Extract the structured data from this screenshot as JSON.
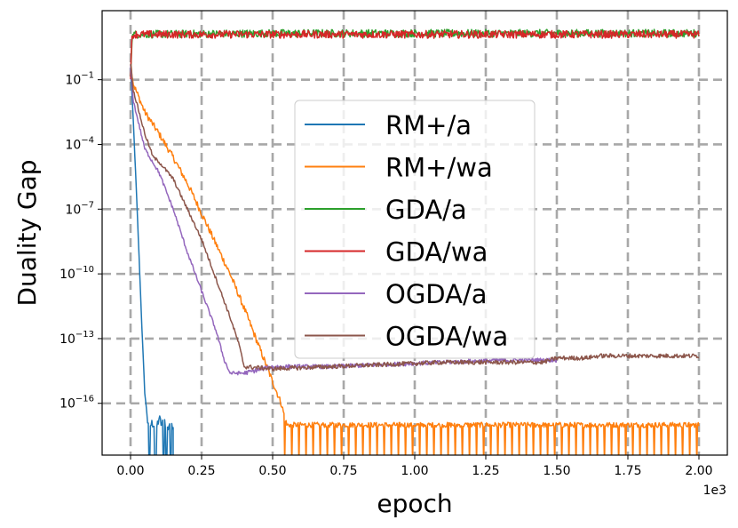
{
  "chart_data": {
    "type": "line",
    "title": "",
    "xlabel": "epoch",
    "ylabel": "Duality Gap",
    "x_scale_label": "1e3",
    "yscale": "log",
    "xlim": [
      -0.1,
      2.1
    ],
    "ylim_log10": [
      -18.4,
      2.2
    ],
    "x_ticks": [
      0.0,
      0.25,
      0.5,
      0.75,
      1.0,
      1.25,
      1.5,
      1.75,
      2.0
    ],
    "x_tick_labels": [
      "0.00",
      "0.25",
      "0.50",
      "0.75",
      "1.00",
      "1.25",
      "1.50",
      "1.75",
      "2.00"
    ],
    "y_ticks_log10": [
      -16,
      -13,
      -10,
      -7,
      -4,
      -1
    ],
    "y_tick_base": "10",
    "y_tick_exponents": [
      "−16",
      "−13",
      "−10",
      "−7",
      "−4",
      "−1"
    ],
    "grid": true,
    "legend_position": "center",
    "series": [
      {
        "name": "RM+/a",
        "color": "#1f77b4",
        "style": "spiky-bottom",
        "floor_log10": -18.4,
        "x": [
          0.0,
          0.005,
          0.01,
          0.02,
          0.03,
          0.04,
          0.05,
          0.06,
          0.07,
          0.08,
          0.09,
          0.1,
          0.11,
          0.12,
          0.13,
          0.14,
          0.15
        ],
        "y_log10": [
          -0.5,
          -1.7,
          -3.0,
          -6.0,
          -9.2,
          -12.5,
          -15.5,
          -16.8,
          -17.0,
          -16.9,
          -17.2,
          -16.7,
          -17.0,
          -16.8,
          -17.2,
          -16.8,
          -17.0
        ],
        "gaps": [
          [
            0.065,
            0.07
          ],
          [
            0.085,
            0.092
          ],
          [
            0.115,
            0.118
          ],
          [
            0.125,
            0.128
          ],
          [
            0.14,
            0.145
          ]
        ]
      },
      {
        "name": "RM+/wa",
        "color": "#ff7f0e",
        "x": [
          0.0,
          0.01,
          0.05,
          0.1,
          0.15,
          0.2,
          0.25,
          0.3,
          0.35,
          0.4,
          0.45,
          0.5,
          0.53,
          0.55,
          0.6,
          0.8,
          1.0,
          1.2,
          1.4,
          1.6,
          1.8,
          2.0
        ],
        "y_log10": [
          -0.2,
          -1.2,
          -2.5,
          -3.5,
          -4.6,
          -5.8,
          -7.2,
          -8.6,
          -10.0,
          -11.6,
          -13.3,
          -15.0,
          -16.0,
          -17.0,
          -17.0,
          -17.0,
          -17.0,
          -17.0,
          -17.0,
          -17.0,
          -17.0,
          -17.0
        ],
        "spike_start": 0.54,
        "spike_period": 0.025,
        "floor_log10": -18.4
      },
      {
        "name": "GDA/a",
        "color": "#2ca02c",
        "x": [
          0.0,
          0.005,
          0.01,
          0.5,
          1.0,
          1.5,
          2.0
        ],
        "y_log10": [
          -0.8,
          0.9,
          1.1,
          1.15,
          1.15,
          1.15,
          1.15
        ]
      },
      {
        "name": "GDA/wa",
        "color": "#d62728",
        "x": [
          0.0,
          0.005,
          0.01,
          0.5,
          1.0,
          1.5,
          2.0
        ],
        "y_log10": [
          -0.8,
          0.9,
          1.1,
          1.1,
          1.1,
          1.1,
          1.1
        ]
      },
      {
        "name": "OGDA/a",
        "color": "#9467bd",
        "x": [
          0.0,
          0.01,
          0.05,
          0.1,
          0.15,
          0.2,
          0.25,
          0.3,
          0.33,
          0.35,
          0.4,
          0.5,
          0.7,
          0.9,
          1.1,
          1.3,
          1.5
        ],
        "y_log10": [
          -0.4,
          -2.0,
          -4.2,
          -5.3,
          -7.0,
          -9.0,
          -10.8,
          -12.6,
          -14.0,
          -14.6,
          -14.6,
          -14.3,
          -14.3,
          -14.2,
          -14.1,
          -14.0,
          -14.0
        ]
      },
      {
        "name": "OGDA/wa",
        "color": "#8c564b",
        "x": [
          0.0,
          0.01,
          0.05,
          0.08,
          0.1,
          0.15,
          0.2,
          0.25,
          0.3,
          0.35,
          0.38,
          0.4,
          0.5,
          0.7,
          0.9,
          1.1,
          1.3,
          1.45,
          1.5,
          1.6,
          1.65,
          1.7,
          1.8,
          2.0
        ],
        "y_log10": [
          -0.2,
          -1.5,
          -3.5,
          -4.6,
          -4.8,
          -5.6,
          -7.0,
          -8.4,
          -10.2,
          -12.0,
          -13.2,
          -14.3,
          -14.4,
          -14.3,
          -14.2,
          -14.1,
          -14.1,
          -14.1,
          -13.9,
          -13.9,
          -13.8,
          -13.8,
          -13.8,
          -13.8
        ]
      }
    ]
  }
}
